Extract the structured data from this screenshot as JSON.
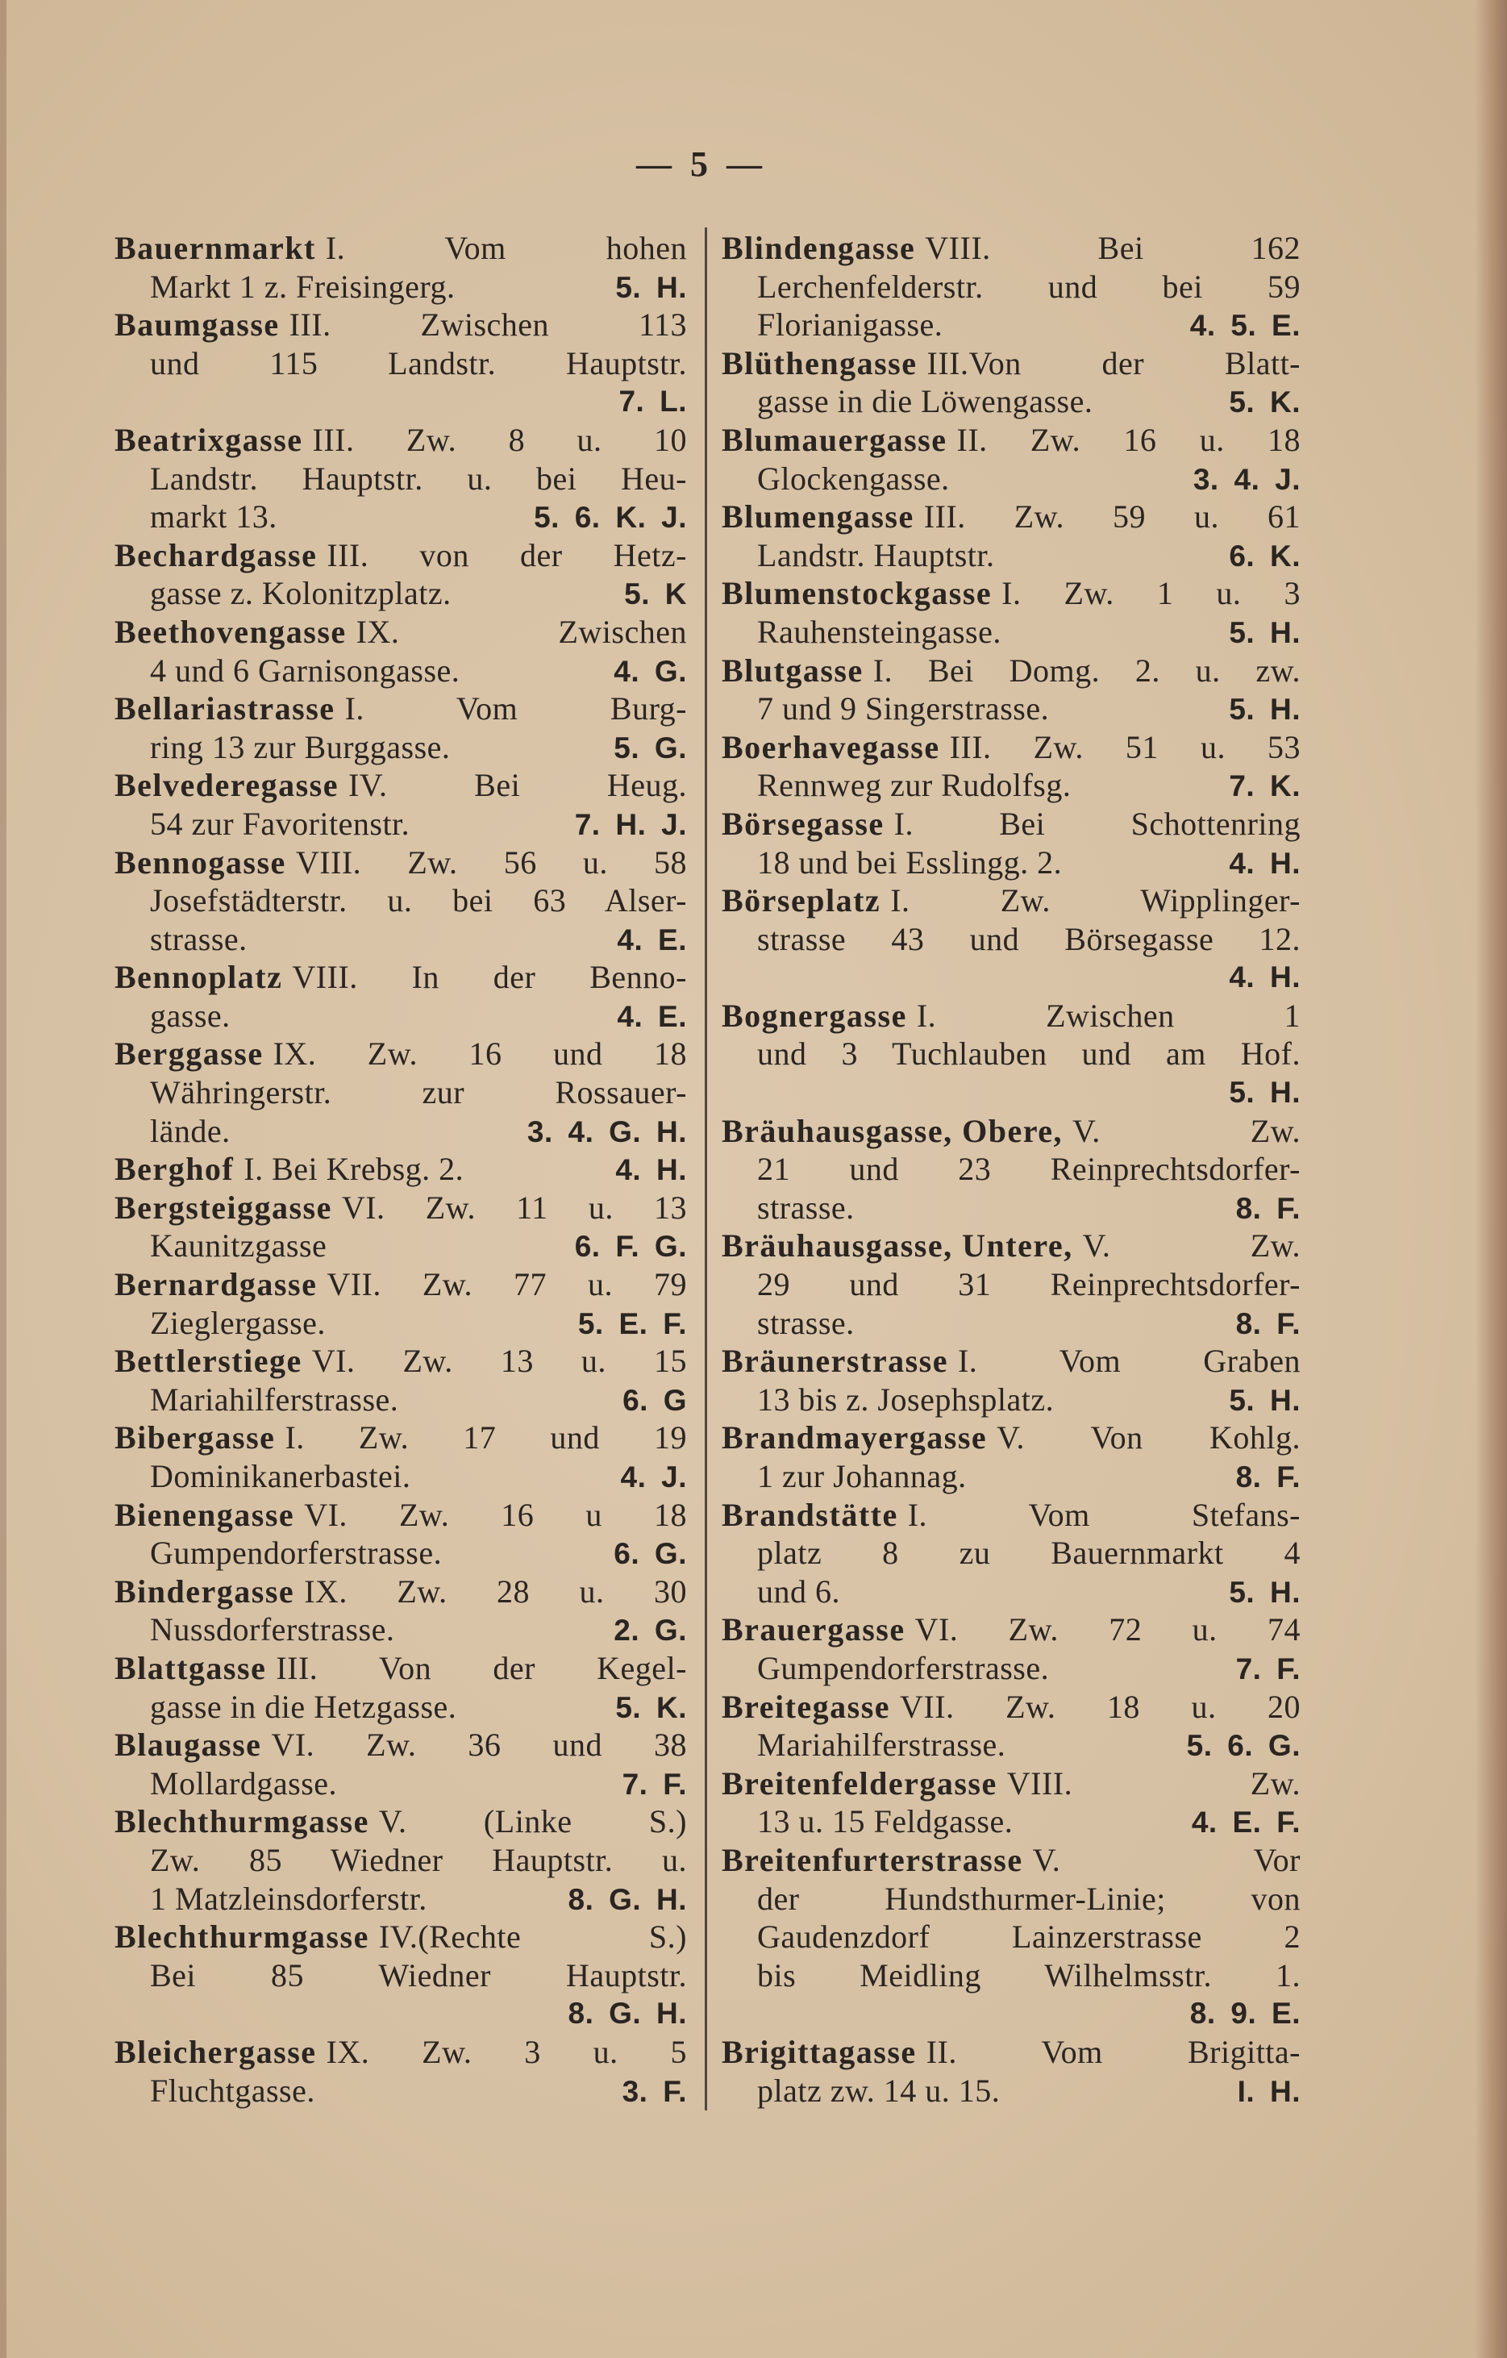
{
  "page_number": "— 5 —",
  "paper_color": "#d8c3a8",
  "left_column": [
    {
      "name": "Bauernmarkt",
      "rest": "I. Vom hohen",
      "cont": [
        "Markt 1 z. Freisingerg."
      ],
      "ref": "5. H."
    },
    {
      "name": "Baumgasse",
      "rest": "III. Zwischen 113",
      "cont": [
        "und 115 Landstr. Hauptstr.",
        ""
      ],
      "ref": "7. L."
    },
    {
      "name": "Beatrixgasse",
      "rest": "III. Zw. 8 u. 10",
      "cont": [
        "Landstr. Hauptstr. u. bei Heu-",
        "markt 13."
      ],
      "ref": "5. 6. K. J."
    },
    {
      "name": "Bechardgasse",
      "rest": "III. von der Hetz-",
      "cont": [
        "gasse z. Kolonitzplatz."
      ],
      "ref": "5. K"
    },
    {
      "name": "Beethovengasse",
      "rest": "IX. Zwischen",
      "cont": [
        "4 und 6 Garnisongasse."
      ],
      "ref": "4. G."
    },
    {
      "name": "Bellariastrasse",
      "rest": "I. Vom Burg-",
      "cont": [
        "ring 13 zur Burggasse."
      ],
      "ref": "5. G."
    },
    {
      "name": "Belvederegasse",
      "rest": "IV. Bei Heug.",
      "cont": [
        "54 zur Favoritenstr."
      ],
      "ref": "7. H. J."
    },
    {
      "name": "Bennogasse",
      "rest": "VIII. Zw. 56 u. 58",
      "cont": [
        "Josefstädterstr. u. bei 63 Alser-",
        "strasse."
      ],
      "ref": "4. E."
    },
    {
      "name": "Bennoplatz",
      "rest": "VIII. In der Benno-",
      "cont": [
        "gasse."
      ],
      "ref": "4. E."
    },
    {
      "name": "Berggasse",
      "rest": "IX. Zw. 16 und 18",
      "cont": [
        "Währingerstr. zur Rossauer-",
        "lände."
      ],
      "ref": "3. 4. G. H."
    },
    {
      "name": "Berghof",
      "rest": "I. Bei Krebsg. 2.",
      "cont": [],
      "ref": "4. H."
    },
    {
      "name": "Bergsteiggasse",
      "rest": "VI. Zw. 11 u. 13",
      "cont": [
        "Kaunitzgasse"
      ],
      "ref": "6. F. G."
    },
    {
      "name": "Bernardgasse",
      "rest": "VII. Zw. 77 u. 79",
      "cont": [
        "Zieglergasse."
      ],
      "ref": "5. E. F."
    },
    {
      "name": "Bettlerstiege",
      "rest": "VI. Zw. 13 u. 15",
      "cont": [
        "Mariahilferstrasse."
      ],
      "ref": "6. G"
    },
    {
      "name": "Bibergasse",
      "rest": "I. Zw. 17 und 19",
      "cont": [
        "Dominikanerbastei."
      ],
      "ref": "4. J."
    },
    {
      "name": "Bienengasse",
      "rest": "VI. Zw. 16 u 18",
      "cont": [
        "Gumpendorferstrasse."
      ],
      "ref": "6. G."
    },
    {
      "name": "Bindergasse",
      "rest": "IX. Zw. 28 u. 30",
      "cont": [
        "Nussdorferstrasse."
      ],
      "ref": "2. G."
    },
    {
      "name": "Blattgasse",
      "rest": "III. Von der Kegel-",
      "cont": [
        "gasse in die Hetzgasse."
      ],
      "ref": "5. K."
    },
    {
      "name": "Blaugasse",
      "rest": "VI. Zw. 36 und 38",
      "cont": [
        "Mollardgasse."
      ],
      "ref": "7. F."
    },
    {
      "name": "Blechthurmgasse",
      "rest": "V. (Linke S.)",
      "cont": [
        "Zw. 85 Wiedner Hauptstr. u.",
        "1 Matzleinsdorferstr."
      ],
      "ref": "8. G. H."
    },
    {
      "name": "Blechthurmgasse",
      "rest": "IV.(Rechte S.)",
      "cont": [
        "Bei 85 Wiedner Hauptstr.",
        ""
      ],
      "ref": "8. G. H."
    },
    {
      "name": "Bleichergasse",
      "rest": "IX. Zw. 3 u. 5",
      "cont": [
        "Fluchtgasse."
      ],
      "ref": "3. F."
    }
  ],
  "right_column": [
    {
      "name": "Blindengasse",
      "rest": "VIII. Bei 162",
      "cont": [
        "Lerchenfelderstr. und bei 59",
        "Florianigasse."
      ],
      "ref": "4. 5. E."
    },
    {
      "name": "Blüthengasse",
      "rest": "III.Von der Blatt-",
      "cont": [
        "gasse in die Löwengasse."
      ],
      "ref": "5. K."
    },
    {
      "name": "Blumauergasse",
      "rest": "II. Zw. 16 u. 18",
      "cont": [
        "Glockengasse."
      ],
      "ref": "3. 4. J."
    },
    {
      "name": "Blumengasse",
      "rest": "III. Zw. 59 u. 61",
      "cont": [
        "Landstr. Hauptstr."
      ],
      "ref": "6. K."
    },
    {
      "name": "Blumenstockgasse",
      "rest": "I. Zw. 1 u. 3",
      "cont": [
        "Rauhensteingasse."
      ],
      "ref": "5. H."
    },
    {
      "name": "Blutgasse",
      "rest": "I. Bei Domg. 2. u. zw.",
      "cont": [
        "7 und 9 Singerstrasse."
      ],
      "ref": "5. H."
    },
    {
      "name": "Boerhavegasse",
      "rest": "III. Zw. 51 u. 53",
      "cont": [
        "Rennweg zur Rudolfsg."
      ],
      "ref": "7. K."
    },
    {
      "name": "Börsegasse",
      "rest": "I. Bei Schottenring",
      "cont": [
        "18 und bei Esslingg. 2."
      ],
      "ref": "4. H."
    },
    {
      "name": "Börseplatz",
      "rest": "I. Zw. Wipplinger-",
      "cont": [
        "strasse 43 und Börsegasse 12.",
        ""
      ],
      "ref": "4. H."
    },
    {
      "name": "Bognergasse",
      "rest": "I. Zwischen 1",
      "cont": [
        "und 3 Tuchlauben und am Hof.",
        ""
      ],
      "ref": "5. H."
    },
    {
      "name": "Bräuhausgasse, Obere,",
      "rest": "V. Zw.",
      "cont": [
        "21 und 23 Reinprechtsdorfer-",
        "strasse."
      ],
      "ref": "8. F."
    },
    {
      "name": "Bräuhausgasse, Untere,",
      "rest": "V. Zw.",
      "cont": [
        "29 und 31 Reinprechtsdorfer-",
        "strasse."
      ],
      "ref": "8. F."
    },
    {
      "name": "Bräunerstrasse",
      "rest": "I. Vom Graben",
      "cont": [
        "13 bis z. Josephsplatz."
      ],
      "ref": "5. H."
    },
    {
      "name": "Brandmayergasse",
      "rest": "V. Von Kohlg.",
      "cont": [
        "1 zur Johannag."
      ],
      "ref": "8. F."
    },
    {
      "name": "Brandstätte",
      "rest": "I. Vom Stefans-",
      "cont": [
        "platz 8 zu Bauernmarkt 4",
        "und 6."
      ],
      "ref": "5. H."
    },
    {
      "name": "Brauergasse",
      "rest": "VI. Zw. 72 u. 74",
      "cont": [
        "Gumpendorferstrasse."
      ],
      "ref": "7. F."
    },
    {
      "name": "Breitegasse",
      "rest": "VII. Zw. 18 u. 20",
      "cont": [
        "Mariahilferstrasse."
      ],
      "ref": "5. 6. G."
    },
    {
      "name": "Breitenfeldergasse",
      "rest": "VIII. Zw.",
      "cont": [
        "13 u. 15 Feldgasse."
      ],
      "ref": "4. E. F."
    },
    {
      "name": "Breitenfurterstrasse",
      "rest": "V. Vor",
      "cont": [
        "der Hundsthurmer-Linie; von",
        "Gaudenzdorf Lainzerstrasse 2",
        "bis Meidling Wilhelmsstr. 1.",
        ""
      ],
      "ref": "8. 9. E."
    },
    {
      "name": "Brigittagasse",
      "rest": "II. Vom Brigitta-",
      "cont": [
        "platz zw. 14 u. 15."
      ],
      "ref": "I. H."
    }
  ]
}
